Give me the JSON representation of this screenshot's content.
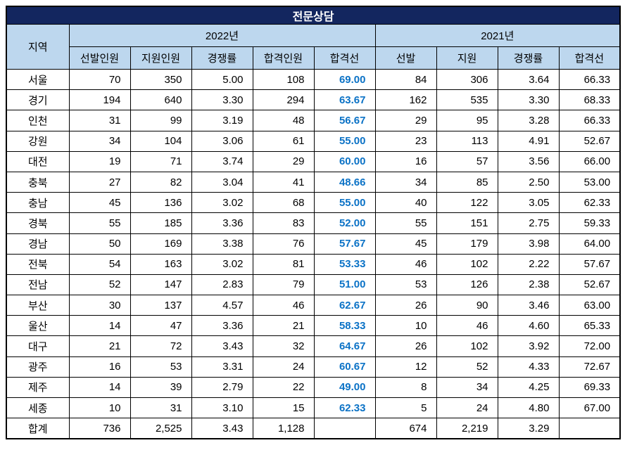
{
  "title": "전문상담",
  "styles": {
    "title_bar_navy": "#13265F",
    "header_fill_blue": "#BDD7EE",
    "cutline_text_blue": "#0B72C6",
    "grid_border": "#000000",
    "body_text": "#000000"
  },
  "chart_data": {
    "type": "table",
    "title": "전문상담",
    "region_column": "지역",
    "column_groups": [
      {
        "label": "2022년",
        "columns": [
          "선발인원",
          "지원인원",
          "경쟁률",
          "합격인원",
          "합격선"
        ]
      },
      {
        "label": "2021년",
        "columns": [
          "선발",
          "지원",
          "경쟁률",
          "합격선"
        ]
      }
    ],
    "rows": [
      {
        "region": "서울",
        "values": [
          "70",
          "350",
          "5.00",
          "108",
          "69.00",
          "84",
          "306",
          "3.64",
          "66.33"
        ]
      },
      {
        "region": "경기",
        "values": [
          "194",
          "640",
          "3.30",
          "294",
          "63.67",
          "162",
          "535",
          "3.30",
          "68.33"
        ]
      },
      {
        "region": "인천",
        "values": [
          "31",
          "99",
          "3.19",
          "48",
          "56.67",
          "29",
          "95",
          "3.28",
          "66.33"
        ]
      },
      {
        "region": "강원",
        "values": [
          "34",
          "104",
          "3.06",
          "61",
          "55.00",
          "23",
          "113",
          "4.91",
          "52.67"
        ]
      },
      {
        "region": "대전",
        "values": [
          "19",
          "71",
          "3.74",
          "29",
          "60.00",
          "16",
          "57",
          "3.56",
          "66.00"
        ]
      },
      {
        "region": "충북",
        "values": [
          "27",
          "82",
          "3.04",
          "41",
          "48.66",
          "34",
          "85",
          "2.50",
          "53.00"
        ]
      },
      {
        "region": "충남",
        "values": [
          "45",
          "136",
          "3.02",
          "68",
          "55.00",
          "40",
          "122",
          "3.05",
          "62.33"
        ]
      },
      {
        "region": "경북",
        "values": [
          "55",
          "185",
          "3.36",
          "83",
          "52.00",
          "55",
          "151",
          "2.75",
          "59.33"
        ]
      },
      {
        "region": "경남",
        "values": [
          "50",
          "169",
          "3.38",
          "76",
          "57.67",
          "45",
          "179",
          "3.98",
          "64.00"
        ]
      },
      {
        "region": "전북",
        "values": [
          "54",
          "163",
          "3.02",
          "81",
          "53.33",
          "46",
          "102",
          "2.22",
          "57.67"
        ]
      },
      {
        "region": "전남",
        "values": [
          "52",
          "147",
          "2.83",
          "79",
          "51.00",
          "53",
          "126",
          "2.38",
          "52.67"
        ]
      },
      {
        "region": "부산",
        "values": [
          "30",
          "137",
          "4.57",
          "46",
          "62.67",
          "26",
          "90",
          "3.46",
          "63.00"
        ]
      },
      {
        "region": "울산",
        "values": [
          "14",
          "47",
          "3.36",
          "21",
          "58.33",
          "10",
          "46",
          "4.60",
          "65.33"
        ]
      },
      {
        "region": "대구",
        "values": [
          "21",
          "72",
          "3.43",
          "32",
          "64.67",
          "26",
          "102",
          "3.92",
          "72.00"
        ]
      },
      {
        "region": "광주",
        "values": [
          "16",
          "53",
          "3.31",
          "24",
          "60.67",
          "12",
          "52",
          "4.33",
          "72.67"
        ]
      },
      {
        "region": "제주",
        "values": [
          "14",
          "39",
          "2.79",
          "22",
          "49.00",
          "8",
          "34",
          "4.25",
          "69.33"
        ]
      },
      {
        "region": "세종",
        "values": [
          "10",
          "31",
          "3.10",
          "15",
          "62.33",
          "5",
          "24",
          "4.80",
          "67.00"
        ]
      },
      {
        "region": "합계",
        "values": [
          "736",
          "2,525",
          "3.43",
          "1,128",
          "",
          "674",
          "2,219",
          "3.29",
          ""
        ]
      }
    ]
  }
}
